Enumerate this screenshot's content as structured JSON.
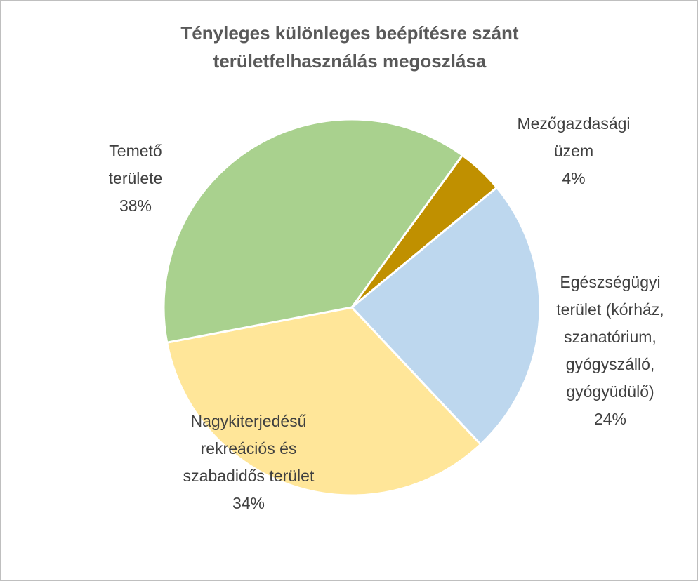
{
  "chart_data": {
    "type": "pie",
    "title": "Tényleges különleges beépítésre szánt területfelhasználás megoszlása",
    "categories": [
      "Mezőgazdasági üzem",
      "Egészségügyi terület (kórház, szanatórium, gyógyszálló, gyógyüdülő)",
      "Nagykiterjedésű rekreációs és szabadidős terület",
      "Temető területe"
    ],
    "values": [
      4,
      24,
      34,
      38
    ],
    "value_labels": [
      "4%",
      "24%",
      "34%",
      "38%"
    ],
    "colors": [
      "#c09000",
      "#bdd7ee",
      "#ffe699",
      "#a9d18e"
    ]
  }
}
